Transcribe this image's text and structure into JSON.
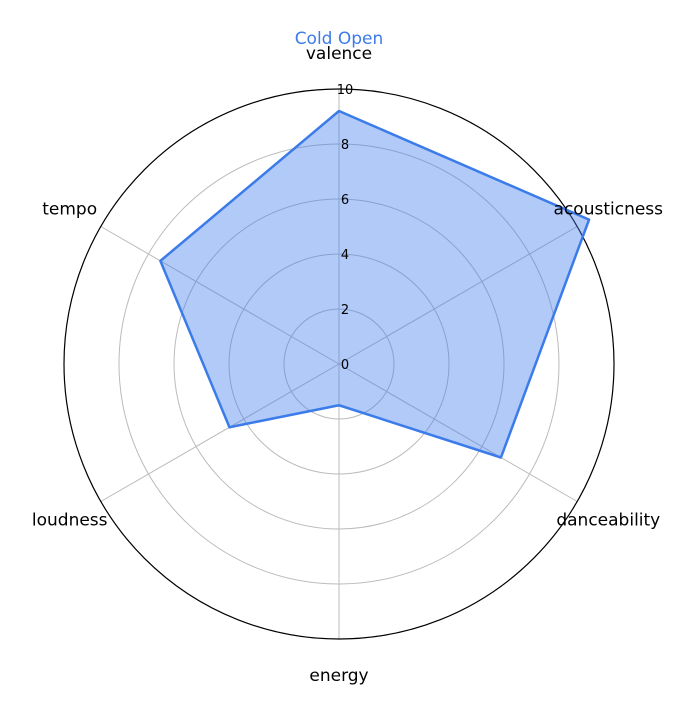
{
  "chart_data": {
    "type": "radar",
    "title": "Cold Open",
    "title_color": "#3b7bea",
    "axes": [
      "valence",
      "acousticness",
      "danceability",
      "energy",
      "loudness",
      "tempo"
    ],
    "values": [
      9.2,
      10.5,
      6.8,
      1.5,
      4.6,
      7.5
    ],
    "rlim": [
      0,
      10
    ],
    "r_ticks": [
      "0",
      "2",
      "4",
      "6",
      "8",
      "10"
    ],
    "grid": true,
    "colors": {
      "fill": "#3b7bea",
      "fill_opacity": 0.4,
      "line": "#3b7bea",
      "grid": "#bbbbbb",
      "frame": "#000000"
    }
  }
}
